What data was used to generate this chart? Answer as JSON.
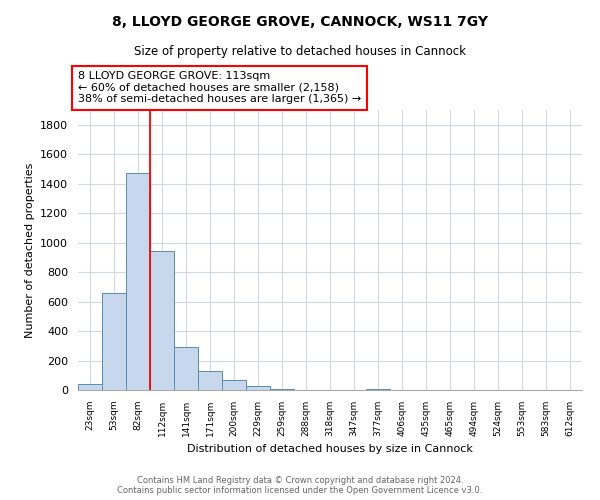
{
  "title": "8, LLOYD GEORGE GROVE, CANNOCK, WS11 7GY",
  "subtitle": "Size of property relative to detached houses in Cannock",
  "xlabel": "Distribution of detached houses by size in Cannock",
  "ylabel": "Number of detached properties",
  "bar_color": "#c8d8ec",
  "bar_edge_color": "#5a8ab0",
  "bins": [
    "23sqm",
    "53sqm",
    "82sqm",
    "112sqm",
    "141sqm",
    "171sqm",
    "200sqm",
    "229sqm",
    "259sqm",
    "288sqm",
    "318sqm",
    "347sqm",
    "377sqm",
    "406sqm",
    "435sqm",
    "465sqm",
    "494sqm",
    "524sqm",
    "553sqm",
    "583sqm",
    "612sqm"
  ],
  "values": [
    40,
    655,
    1470,
    940,
    295,
    130,
    65,
    25,
    10,
    0,
    0,
    0,
    10,
    0,
    0,
    0,
    0,
    0,
    0,
    0,
    0
  ],
  "ylim": [
    0,
    1900
  ],
  "yticks": [
    0,
    200,
    400,
    600,
    800,
    1000,
    1200,
    1400,
    1600,
    1800
  ],
  "property_line_x": 2.5,
  "property_line_label": "8 LLOYD GEORGE GROVE: 113sqm",
  "annotation_line1": "← 60% of detached houses are smaller (2,158)",
  "annotation_line2": "38% of semi-detached houses are larger (1,365) →",
  "footer_line1": "Contains HM Land Registry data © Crown copyright and database right 2024.",
  "footer_line2": "Contains public sector information licensed under the Open Government Licence v3.0.",
  "background_color": "#ffffff",
  "grid_color": "#d0d8e0"
}
